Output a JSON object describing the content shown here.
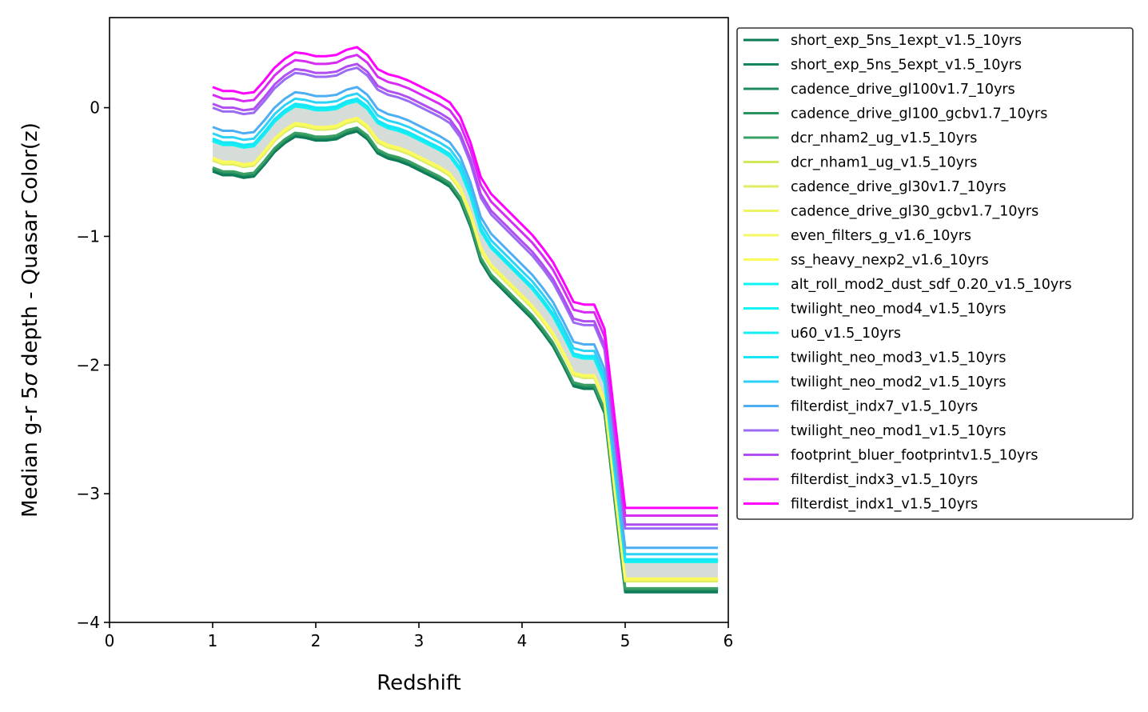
{
  "chart_data": {
    "type": "line",
    "title": "",
    "xlabel": "Redshift",
    "ylabel_parts": [
      "Median g-r 5",
      "σ",
      " depth - Quasar Color(z)"
    ],
    "xlim": [
      0,
      6
    ],
    "ylim": [
      -4,
      0.7
    ],
    "xticks": [
      0,
      1,
      2,
      3,
      4,
      5,
      6
    ],
    "xtick_labels": [
      "0",
      "1",
      "2",
      "3",
      "4",
      "5",
      "6"
    ],
    "yticks": [
      -4,
      -3,
      -2,
      -1,
      0
    ],
    "ytick_labels": [
      "−4",
      "−3",
      "−2",
      "−1",
      "0"
    ],
    "grid": false,
    "legend_position": "outside-right",
    "band_color": "#d6ddd8",
    "x": [
      1.0,
      1.1,
      1.2,
      1.3,
      1.4,
      1.5,
      1.6,
      1.7,
      1.8,
      1.9,
      2.0,
      2.1,
      2.2,
      2.3,
      2.4,
      2.5,
      2.6,
      2.7,
      2.8,
      2.9,
      3.0,
      3.1,
      3.2,
      3.3,
      3.4,
      3.5,
      3.6,
      3.7,
      3.8,
      3.9,
      4.0,
      4.1,
      4.2,
      4.3,
      4.4,
      4.5,
      4.6,
      4.7,
      4.8,
      4.9,
      5.0,
      5.1,
      5.2,
      5.3,
      5.4,
      5.5,
      5.6,
      5.7,
      5.8,
      5.9
    ],
    "base_curve": [
      -0.47,
      -0.5,
      -0.5,
      -0.52,
      -0.51,
      -0.42,
      -0.32,
      -0.25,
      -0.2,
      -0.21,
      -0.23,
      -0.23,
      -0.22,
      -0.18,
      -0.16,
      -0.22,
      -0.33,
      -0.37,
      -0.39,
      -0.42,
      -0.46,
      -0.5,
      -0.54,
      -0.59,
      -0.7,
      -0.9,
      -1.17,
      -1.3,
      -1.38,
      -1.46,
      -1.54,
      -1.62,
      -1.72,
      -1.83,
      -1.98,
      -2.14,
      -2.16,
      -2.16,
      -2.35,
      -3.05,
      -3.74,
      -3.74,
      -3.74,
      -3.74,
      -3.74,
      -3.74,
      -3.74,
      -3.74,
      -3.74,
      -3.74
    ],
    "series": [
      {
        "name": "short_exp_5ns_1expt_v1.5_10yrs",
        "color": "#0b7a56",
        "offset": -0.025
      },
      {
        "name": "short_exp_5ns_5expt_v1.5_10yrs",
        "color": "#16845e",
        "offset": -0.01
      },
      {
        "name": "cadence_drive_gl100v1.7_10yrs",
        "color": "#1e8a60",
        "offset": -0.005
      },
      {
        "name": "cadence_drive_gl100_gcbv1.7_10yrs",
        "color": "#28915f",
        "offset": 0.0
      },
      {
        "name": "dcr_nham2_ug_v1.5_10yrs",
        "color": "#3aa064",
        "offset": 0.005
      },
      {
        "name": "dcr_nham1_ug_v1.5_10yrs",
        "color": "#d2e85a",
        "offset": 0.06
      },
      {
        "name": "cadence_drive_gl30v1.7_10yrs",
        "color": "#e1ec62",
        "offset": 0.065
      },
      {
        "name": "cadence_drive_gl30_gcbv1.7_10yrs",
        "color": "#eef564",
        "offset": 0.07
      },
      {
        "name": "even_filters_g_v1.6_10yrs",
        "color": "#f6f864",
        "offset": 0.075
      },
      {
        "name": "ss_heavy_nexp2_v1.6_10yrs",
        "color": "#fbfb5c",
        "offset": 0.08
      },
      {
        "name": "alt_roll_mod2_dust_sdf_0.20_v1.5_10yrs",
        "color": "#10f4f4",
        "offset": 0.21
      },
      {
        "name": "twilight_neo_mod4_v1.5_10yrs",
        "color": "#12f2f2",
        "offset": 0.215
      },
      {
        "name": "u60_v1.5_10yrs",
        "color": "#14eef4",
        "offset": 0.22
      },
      {
        "name": "twilight_neo_mod3_v1.5_10yrs",
        "color": "#18e6f6",
        "offset": 0.23
      },
      {
        "name": "twilight_neo_mod2_v1.5_10yrs",
        "color": "#2cd2f6",
        "offset": 0.27
      },
      {
        "name": "filterdist_indx7_v1.5_10yrs",
        "color": "#4eaef4",
        "offset": 0.32
      },
      {
        "name": "twilight_neo_mod1_v1.5_10yrs",
        "color": "#9a6cf4",
        "offset": 0.47
      },
      {
        "name": "footprint_bluer_footprintv1.5_10yrs",
        "color": "#b04ef2",
        "offset": 0.5
      },
      {
        "name": "filterdist_indx3_v1.5_10yrs",
        "color": "#d62cf4",
        "offset": 0.57
      },
      {
        "name": "filterdist_indx1_v1.5_10yrs",
        "color": "#ff00ff",
        "offset": 0.63
      }
    ]
  }
}
